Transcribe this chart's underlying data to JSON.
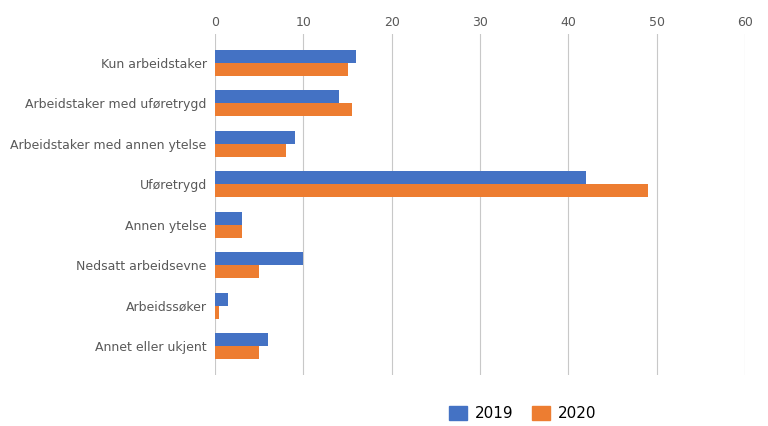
{
  "categories": [
    "Kun arbeidstaker",
    "Arbeidstaker med uføretrygd",
    "Arbeidstaker med annen ytelse",
    "Uføretrygd",
    "Annen ytelse",
    "Nedsatt arbeidsevne",
    "Arbeidssøker",
    "Annet eller ukjent"
  ],
  "values_2019": [
    16,
    14,
    9,
    42,
    3,
    10,
    1.5,
    6
  ],
  "values_2020": [
    15,
    15.5,
    8,
    49,
    3,
    5,
    0.5,
    5
  ],
  "color_2019": "#4472C4",
  "color_2020": "#ED7D31",
  "xlim": [
    0,
    60
  ],
  "xticks": [
    0,
    10,
    20,
    30,
    40,
    50,
    60
  ],
  "legend_labels": [
    "2019",
    "2020"
  ],
  "bar_height": 0.32,
  "background_color": "#ffffff",
  "grid_color": "#c8c8c8",
  "tick_label_color": "#595959"
}
